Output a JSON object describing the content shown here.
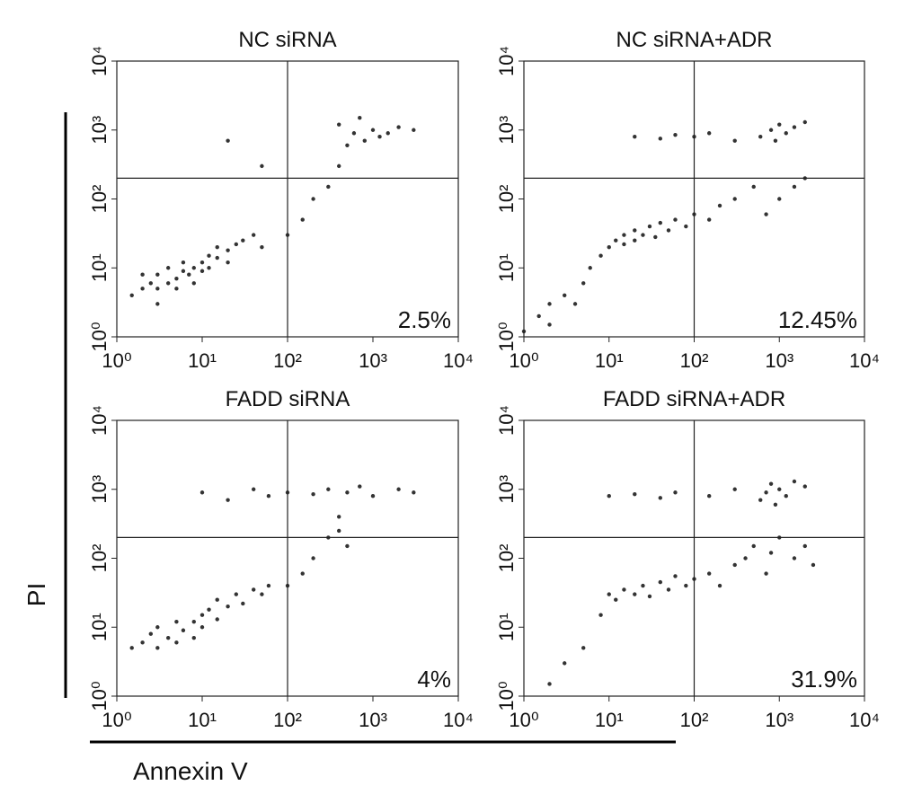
{
  "y_label": "PI",
  "x_label": "Annexin V",
  "chart_data": [
    {
      "type": "scatter",
      "title": "NC siRNA",
      "annotation": "2.5%",
      "color": "#333333",
      "log_scale": true,
      "xlim": [
        1,
        10000
      ],
      "ylim": [
        1,
        10000
      ],
      "xticks": [
        {
          "value": 1,
          "label": "10⁰"
        },
        {
          "value": 10,
          "label": "10¹"
        },
        {
          "value": 100,
          "label": "10²"
        },
        {
          "value": 1000,
          "label": "10³"
        },
        {
          "value": 10000,
          "label": "10⁴"
        }
      ],
      "yticks": [
        {
          "value": 1,
          "label": "10⁰"
        },
        {
          "value": 10,
          "label": "10¹"
        },
        {
          "value": 100,
          "label": "10²"
        },
        {
          "value": 1000,
          "label": "10³"
        },
        {
          "value": 10000,
          "label": "10⁴"
        }
      ],
      "quadrant_x": 100,
      "quadrant_y": 200,
      "x": [
        1.5,
        2,
        2.5,
        3,
        3,
        4,
        4,
        5,
        5,
        6,
        6,
        7,
        8,
        8,
        10,
        10,
        12,
        12,
        15,
        15,
        20,
        20,
        25,
        30,
        40,
        50,
        3,
        2,
        150,
        200,
        300,
        400,
        500,
        600,
        800,
        1000,
        1200,
        1500,
        2000,
        3000,
        400,
        700,
        100,
        20,
        50
      ],
      "values": [
        4,
        5,
        6,
        5,
        8,
        6,
        10,
        7,
        5,
        9,
        12,
        8,
        10,
        6,
        12,
        9,
        15,
        10,
        14,
        20,
        18,
        12,
        22,
        25,
        30,
        20,
        3,
        8,
        50,
        100,
        150,
        300,
        600,
        900,
        700,
        1000,
        800,
        900,
        1100,
        1000,
        1200,
        1500,
        30,
        700,
        300
      ]
    },
    {
      "type": "scatter",
      "title": "NC siRNA+ADR",
      "annotation": "12.45%",
      "color": "#333333",
      "log_scale": true,
      "xlim": [
        1,
        10000
      ],
      "ylim": [
        1,
        10000
      ],
      "xticks": [
        {
          "value": 1,
          "label": "10⁰"
        },
        {
          "value": 10,
          "label": "10¹"
        },
        {
          "value": 100,
          "label": "10²"
        },
        {
          "value": 1000,
          "label": "10³"
        },
        {
          "value": 10000,
          "label": "10⁴"
        }
      ],
      "yticks": [
        {
          "value": 1,
          "label": "10⁰"
        },
        {
          "value": 10,
          "label": "10¹"
        },
        {
          "value": 100,
          "label": "10²"
        },
        {
          "value": 1000,
          "label": "10³"
        },
        {
          "value": 10000,
          "label": "10⁴"
        }
      ],
      "quadrant_x": 100,
      "quadrant_y": 200,
      "x": [
        1,
        1.5,
        2,
        2,
        3,
        4,
        5,
        6,
        8,
        10,
        12,
        15,
        15,
        20,
        20,
        25,
        30,
        35,
        40,
        50,
        60,
        80,
        100,
        150,
        200,
        300,
        500,
        700,
        1000,
        1500,
        2000,
        600,
        800,
        1000,
        1200,
        1500,
        900,
        2000,
        20,
        40,
        60,
        100,
        150,
        300
      ],
      "values": [
        1.2,
        2,
        1.5,
        3,
        4,
        3,
        6,
        10,
        15,
        20,
        25,
        30,
        22,
        35,
        25,
        30,
        40,
        28,
        45,
        35,
        50,
        40,
        60,
        50,
        80,
        100,
        150,
        60,
        100,
        150,
        200,
        800,
        1000,
        1200,
        900,
        1100,
        700,
        1300,
        800,
        750,
        850,
        800,
        900,
        700
      ]
    },
    {
      "type": "scatter",
      "title": "FADD siRNA",
      "annotation": "4%",
      "color": "#333333",
      "log_scale": true,
      "xlim": [
        1,
        10000
      ],
      "ylim": [
        1,
        10000
      ],
      "xticks": [
        {
          "value": 1,
          "label": "10⁰"
        },
        {
          "value": 10,
          "label": "10¹"
        },
        {
          "value": 100,
          "label": "10²"
        },
        {
          "value": 1000,
          "label": "10³"
        },
        {
          "value": 10000,
          "label": "10⁴"
        }
      ],
      "yticks": [
        {
          "value": 1,
          "label": "10⁰"
        },
        {
          "value": 10,
          "label": "10¹"
        },
        {
          "value": 100,
          "label": "10²"
        },
        {
          "value": 1000,
          "label": "10³"
        },
        {
          "value": 10000,
          "label": "10⁴"
        }
      ],
      "quadrant_x": 100,
      "quadrant_y": 200,
      "x": [
        1.5,
        2,
        2.5,
        3,
        3,
        4,
        5,
        5,
        6,
        8,
        8,
        10,
        10,
        12,
        15,
        15,
        20,
        25,
        30,
        40,
        50,
        60,
        100,
        150,
        200,
        300,
        400,
        500,
        10,
        20,
        40,
        60,
        100,
        200,
        300,
        500,
        700,
        1000,
        2000,
        3000,
        400
      ],
      "values": [
        5,
        6,
        8,
        5,
        10,
        7,
        12,
        6,
        9,
        12,
        7,
        15,
        10,
        18,
        13,
        25,
        20,
        30,
        22,
        35,
        30,
        40,
        40,
        60,
        100,
        200,
        250,
        150,
        900,
        700,
        1000,
        800,
        900,
        850,
        1000,
        900,
        1100,
        800,
        1000,
        900,
        400
      ]
    },
    {
      "type": "scatter",
      "title": "FADD siRNA+ADR",
      "annotation": "31.9%",
      "color": "#333333",
      "log_scale": true,
      "xlim": [
        1,
        10000
      ],
      "ylim": [
        1,
        10000
      ],
      "xticks": [
        {
          "value": 1,
          "label": "10⁰"
        },
        {
          "value": 10,
          "label": "10¹"
        },
        {
          "value": 100,
          "label": "10²"
        },
        {
          "value": 1000,
          "label": "10³"
        },
        {
          "value": 10000,
          "label": "10⁴"
        }
      ],
      "yticks": [
        {
          "value": 1,
          "label": "10⁰"
        },
        {
          "value": 10,
          "label": "10¹"
        },
        {
          "value": 100,
          "label": "10²"
        },
        {
          "value": 1000,
          "label": "10³"
        },
        {
          "value": 10000,
          "label": "10⁴"
        }
      ],
      "quadrant_x": 100,
      "quadrant_y": 200,
      "x": [
        2,
        3,
        5,
        8,
        10,
        12,
        15,
        20,
        25,
        30,
        40,
        50,
        60,
        80,
        100,
        150,
        200,
        300,
        400,
        500,
        700,
        800,
        1000,
        1500,
        2000,
        2500,
        600,
        700,
        800,
        1000,
        1200,
        1500,
        900,
        2000,
        10,
        20,
        40,
        60,
        150,
        300
      ],
      "values": [
        1.5,
        3,
        5,
        15,
        30,
        25,
        35,
        30,
        40,
        28,
        45,
        35,
        55,
        40,
        50,
        60,
        40,
        80,
        100,
        150,
        60,
        120,
        200,
        100,
        150,
        80,
        700,
        900,
        1200,
        1000,
        800,
        1300,
        600,
        1100,
        800,
        850,
        750,
        900,
        800,
        1000
      ]
    }
  ]
}
